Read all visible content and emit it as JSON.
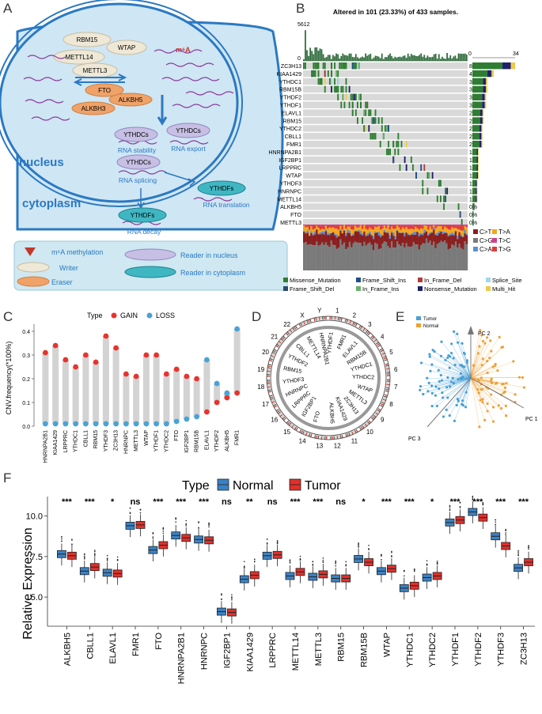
{
  "panels": [
    "A",
    "B",
    "C",
    "D",
    "E",
    "F"
  ],
  "panelA": {
    "cell_labels": {
      "nucleus": "nucleus",
      "cytoplasm": "cytoplasm"
    },
    "writers": [
      "RBM15",
      "WTAP",
      "METTL14",
      "METTL3"
    ],
    "erasers": [
      "FTO",
      "ALKBH5",
      "ALKBH3"
    ],
    "m6a_label": "m⁶A",
    "nuclear_readers": [
      {
        "name": "YTHDCs",
        "fn": "RNA stability"
      },
      {
        "name": "YTHDCs",
        "fn": "RNA splicing"
      },
      {
        "name": "YTHDCs",
        "fn": "RNA export"
      }
    ],
    "cyto_readers": [
      {
        "name": "YTHDFs",
        "fn": "RNA translation"
      },
      {
        "name": "YTHDFs",
        "fn": "RNA decay"
      }
    ],
    "legend": {
      "methylation": "m⁶A methylation",
      "writer": "Writer",
      "eraser": "Eraser",
      "reader_nucleus": "Reader in nucleus",
      "reader_cytoplasm": "Reader in cytoplasm"
    },
    "colors": {
      "cell": "#cfe6f4",
      "membrane": "#2b79c2",
      "writer": "#efe8d6",
      "eraser": "#f0a268",
      "reader_n": "#c7bfe4",
      "reader_c": "#3fb7c3",
      "legend_bg": "#cfe8f1"
    }
  },
  "panelB": {
    "title": "Altered in 101 (23.33%) of 433 samples.",
    "top_axis": {
      "max": "5612",
      "min": "0"
    },
    "side_axis": {
      "min": "0",
      "max": "34"
    },
    "genes": [
      "ZC3H13",
      "KIAA1429",
      "YTHDC1",
      "RBM15B",
      "YTHDF2",
      "YTHDF1",
      "ELAVL1",
      "RBM15",
      "YTHDC2",
      "CBLL1",
      "FMR1",
      "HNRNPA2B1",
      "IGF2BP1",
      "LRPPRC",
      "WTAP",
      "YTHDF3",
      "HNRNPC",
      "METTL14",
      "ALKBH5",
      "FTO",
      "METTL3"
    ],
    "percents": [
      "8%",
      "4%",
      "3%",
      "3%",
      "3%",
      "3%",
      "2%",
      "2%",
      "2%",
      "2%",
      "2%",
      "1%",
      "1%",
      "1%",
      "1%",
      "1%",
      "1%",
      "1%",
      "0%",
      "0%",
      "0%"
    ],
    "side_counts": [
      34,
      17,
      12,
      12,
      11,
      11,
      9,
      9,
      8,
      8,
      8,
      5,
      5,
      5,
      5,
      4,
      4,
      4,
      2,
      1,
      1
    ],
    "titv_legend": [
      {
        "label": "C>T",
        "color": "#8b1f1f"
      },
      {
        "label": "T>A",
        "color": "#f2a81e"
      },
      {
        "label": "C>G",
        "color": "#7a7a7a"
      },
      {
        "label": "T>C",
        "color": "#d23e8c"
      },
      {
        "label": "C>A",
        "color": "#5b8fd0"
      },
      {
        "label": "T>G",
        "color": "#e03a3a"
      }
    ],
    "mutation_legend": [
      {
        "label": "Missense_Mutation",
        "color": "#2e7d32"
      },
      {
        "label": "Frame_Shift_Ins",
        "color": "#1f4e8c"
      },
      {
        "label": "In_Frame_Del",
        "color": "#b33a3a"
      },
      {
        "label": "Splice_Site",
        "color": "#9fd8e8"
      },
      {
        "label": "Frame_Shift_Del",
        "color": "#2c4a6e"
      },
      {
        "label": "In_Frame_Ins",
        "color": "#6ab06a"
      },
      {
        "label": "Nonsense_Mutation",
        "color": "#20206a"
      },
      {
        "label": "Multi_Hit",
        "color": "#f0c94a"
      }
    ]
  },
  "chart_data": [
    {
      "type": "scatter",
      "panel": "C",
      "legend_title": "Type",
      "series": [
        {
          "name": "GAIN",
          "color": "#e8332e",
          "values": [
            0.31,
            0.34,
            0.28,
            0.25,
            0.3,
            0.27,
            0.38,
            0.33,
            0.22,
            0.21,
            0.3,
            0.3,
            0.22,
            0.24,
            0.21,
            0.2,
            0.06,
            0.1,
            0.12,
            0.14
          ]
        },
        {
          "name": "LOSS",
          "color": "#4aa3d4",
          "values": [
            0.01,
            0.01,
            0.01,
            0.01,
            0.01,
            0.01,
            0.01,
            0.01,
            0.01,
            0.01,
            0.01,
            0.01,
            0.01,
            0.02,
            0.03,
            0.04,
            0.28,
            0.18,
            0.14,
            0.41
          ]
        }
      ],
      "categories": [
        "HNRNPA2B1",
        "KIAA1429",
        "LRPPRC",
        "YTHDC1",
        "CBLL1",
        "RBM15",
        "YTHDF3",
        "ZC3H13",
        "HNRNPC",
        "METTL3",
        "WTAP",
        "YTHDF1",
        "YTHDC2",
        "FTO",
        "IGF2BP1",
        "RBM15B",
        "ELAVL1",
        "YTHDF2",
        "ALKBH5",
        "FMR1"
      ],
      "ylabel": "CNV.frequency(*100%)",
      "yticks": [
        "0.0",
        "0.1",
        "0.2",
        "0.3",
        "0.4"
      ],
      "ylim": [
        0,
        0.43
      ]
    },
    {
      "type": "box",
      "panel": "F",
      "legend_title": "Type",
      "series": [
        {
          "name": "Normal",
          "color": "#3b82c4",
          "medians": [
            7.65,
            6.6,
            6.5,
            9.4,
            7.9,
            8.8,
            8.55,
            4.1,
            6.1,
            7.55,
            6.3,
            6.25,
            6.15,
            7.35,
            6.6,
            5.55,
            6.2,
            9.6,
            10.25,
            8.75,
            6.8
          ]
        },
        {
          "name": "Tumor",
          "color": "#e0302b",
          "medians": [
            7.55,
            6.85,
            6.45,
            9.45,
            8.2,
            8.65,
            8.5,
            4.05,
            6.35,
            7.6,
            6.55,
            6.4,
            6.15,
            7.15,
            6.75,
            5.7,
            6.3,
            9.75,
            9.9,
            8.15,
            7.15
          ]
        }
      ],
      "categories": [
        "ALKBH5",
        "CBLL1",
        "ELAVL1",
        "FMR1",
        "FTO",
        "HNRNPA2B1",
        "HNRNPC",
        "IGF2BP1",
        "KIAA1429",
        "LRPPRC",
        "METTL14",
        "METTL3",
        "RBM15",
        "RBM15B",
        "WTAP",
        "YTHDC1",
        "YTHDC2",
        "YTHDF1",
        "YTHDF2",
        "YTHDF3",
        "ZC3H13"
      ],
      "significance": [
        "***",
        "***",
        "*",
        "ns",
        "***",
        "***",
        "***",
        "ns",
        "**",
        "ns",
        "***",
        "***",
        "ns",
        "*",
        "***",
        "***",
        "*",
        "***",
        "***",
        "***",
        "***"
      ],
      "ylabel": "Relative Expression",
      "yticks": [
        "5.0",
        "7.5",
        "10.0"
      ],
      "ylim": [
        3.2,
        11.2
      ]
    }
  ],
  "panelD": {
    "chromosomes": [
      "1",
      "2",
      "3",
      "4",
      "5",
      "6",
      "7",
      "8",
      "9",
      "10",
      "11",
      "12",
      "13",
      "14",
      "15",
      "16",
      "17",
      "18",
      "19",
      "20",
      "21",
      "22",
      "X",
      "Y"
    ],
    "genes": [
      "YTHDF1",
      "FMR1",
      "ELAVL1",
      "RBM15B",
      "YTHDC1",
      "YTHDC2",
      "WTAP",
      "METTL3",
      "ZC3H13",
      "KIAA1429",
      "ALKBH5",
      "FTO",
      "IGF2BP1",
      "LRPPRC",
      "HNRNPC",
      "YTHDF3",
      "RBM15",
      "YTHDF2",
      "CBLL1",
      "METTL14",
      "HNRNPA2B1"
    ]
  },
  "panelE": {
    "legend": [
      {
        "label": "Tumor",
        "color": "#4a9fd4"
      },
      {
        "label": "Normal",
        "color": "#f0a035"
      }
    ],
    "axes": [
      "PC 1",
      "PC 2",
      "PC 3"
    ]
  }
}
